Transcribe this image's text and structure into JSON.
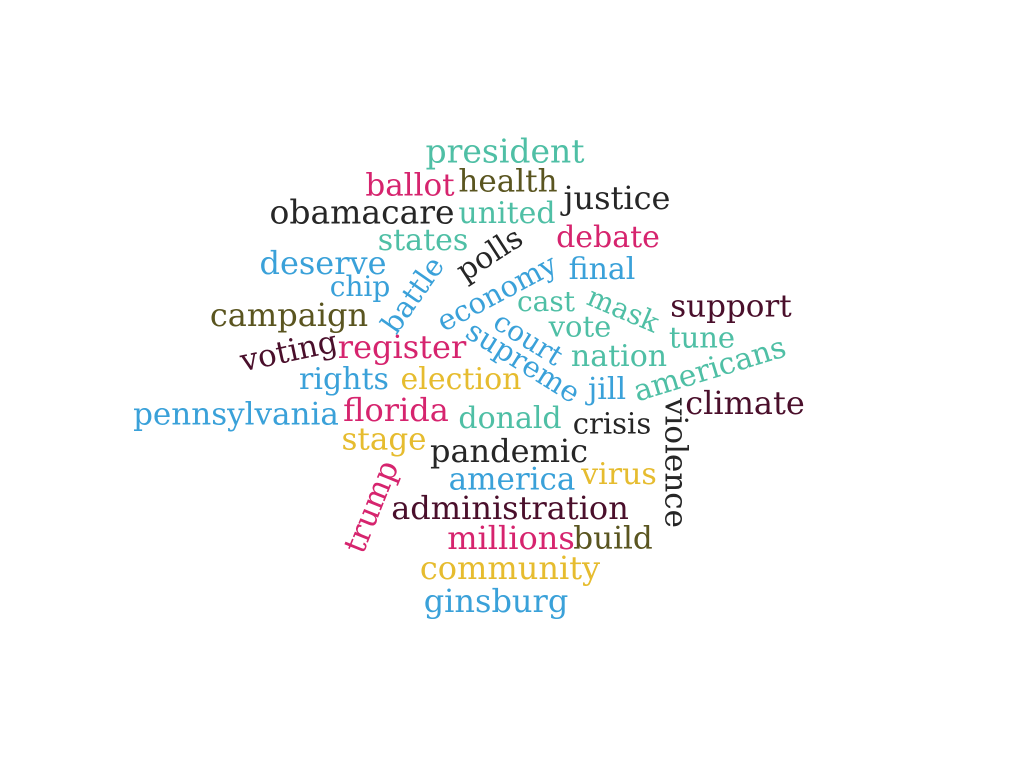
{
  "palette": {
    "teal": "#4fbfa5",
    "crimson": "#d6246e",
    "olive": "#5a5520",
    "charcoal": "#262626",
    "sky": "#3aa1d9",
    "gold": "#e6bc2f",
    "plum": "#4a0f2b"
  },
  "words": [
    {
      "text": "president",
      "color": "teal"
    },
    {
      "text": "ballot",
      "color": "crimson"
    },
    {
      "text": "health",
      "color": "olive"
    },
    {
      "text": "justice",
      "color": "charcoal"
    },
    {
      "text": "obamacare",
      "color": "charcoal"
    },
    {
      "text": "united",
      "color": "teal"
    },
    {
      "text": "states",
      "color": "teal"
    },
    {
      "text": "polls",
      "color": "charcoal"
    },
    {
      "text": "debate",
      "color": "crimson"
    },
    {
      "text": "deserve",
      "color": "sky"
    },
    {
      "text": "battle",
      "color": "sky"
    },
    {
      "text": "economy",
      "color": "sky"
    },
    {
      "text": "final",
      "color": "sky"
    },
    {
      "text": "chip",
      "color": "sky"
    },
    {
      "text": "cast",
      "color": "teal"
    },
    {
      "text": "mask",
      "color": "teal"
    },
    {
      "text": "support",
      "color": "plum"
    },
    {
      "text": "campaign",
      "color": "olive"
    },
    {
      "text": "court",
      "color": "sky"
    },
    {
      "text": "vote",
      "color": "teal"
    },
    {
      "text": "tune",
      "color": "teal"
    },
    {
      "text": "voting",
      "color": "plum"
    },
    {
      "text": "register",
      "color": "crimson"
    },
    {
      "text": "supreme",
      "color": "sky"
    },
    {
      "text": "nation",
      "color": "teal"
    },
    {
      "text": "americans",
      "color": "teal"
    },
    {
      "text": "rights",
      "color": "sky"
    },
    {
      "text": "election",
      "color": "gold"
    },
    {
      "text": "jill",
      "color": "sky"
    },
    {
      "text": "climate",
      "color": "plum"
    },
    {
      "text": "pennsylvania",
      "color": "sky"
    },
    {
      "text": "florida",
      "color": "crimson"
    },
    {
      "text": "donald",
      "color": "teal"
    },
    {
      "text": "crisis",
      "color": "charcoal"
    },
    {
      "text": "violence",
      "color": "charcoal"
    },
    {
      "text": "stage",
      "color": "gold"
    },
    {
      "text": "pandemic",
      "color": "charcoal"
    },
    {
      "text": "america",
      "color": "sky"
    },
    {
      "text": "virus",
      "color": "gold"
    },
    {
      "text": "trump",
      "color": "crimson"
    },
    {
      "text": "administration",
      "color": "plum"
    },
    {
      "text": "millions",
      "color": "crimson"
    },
    {
      "text": "build",
      "color": "olive"
    },
    {
      "text": "community",
      "color": "gold"
    },
    {
      "text": "ginsburg",
      "color": "sky"
    }
  ]
}
